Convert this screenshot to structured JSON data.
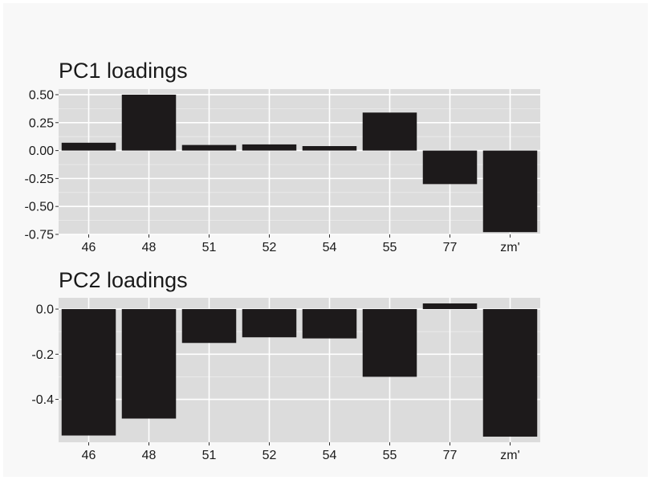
{
  "colors": {
    "panel_bg": "#dcdcdc",
    "grid_major": "#ffffff",
    "grid_minor": "#ebebeb",
    "bar_fill": "#1d1a1b",
    "text": "#1a1a1a"
  },
  "chart_data": [
    {
      "type": "bar",
      "title": "PC1 loadings",
      "xlabel": "",
      "ylabel": "",
      "categories": [
        "46",
        "48",
        "51",
        "52",
        "54",
        "55",
        "77",
        "zm'"
      ],
      "values": [
        0.07,
        0.5,
        0.05,
        0.055,
        0.04,
        0.34,
        -0.3,
        -0.73
      ],
      "ylim": [
        -0.75,
        0.55
      ],
      "yticks": [
        0.5,
        0.25,
        0.0,
        -0.25,
        -0.5,
        -0.75
      ],
      "ytick_labels": [
        "0.50",
        "0.25",
        "0.00",
        "-0.25",
        "-0.50",
        "-0.75"
      ],
      "grid": true,
      "legend": "none"
    },
    {
      "type": "bar",
      "title": "PC2 loadings",
      "xlabel": "",
      "ylabel": "",
      "categories": [
        "46",
        "48",
        "51",
        "52",
        "54",
        "55",
        "77",
        "zm'"
      ],
      "values": [
        -0.56,
        -0.485,
        -0.15,
        -0.125,
        -0.13,
        -0.3,
        0.025,
        -0.565
      ],
      "ylim": [
        -0.59,
        0.05
      ],
      "yticks": [
        0.0,
        -0.2,
        -0.4
      ],
      "ytick_labels": [
        "0.0",
        "-0.2",
        "-0.4"
      ],
      "grid": true,
      "legend": "none"
    }
  ]
}
